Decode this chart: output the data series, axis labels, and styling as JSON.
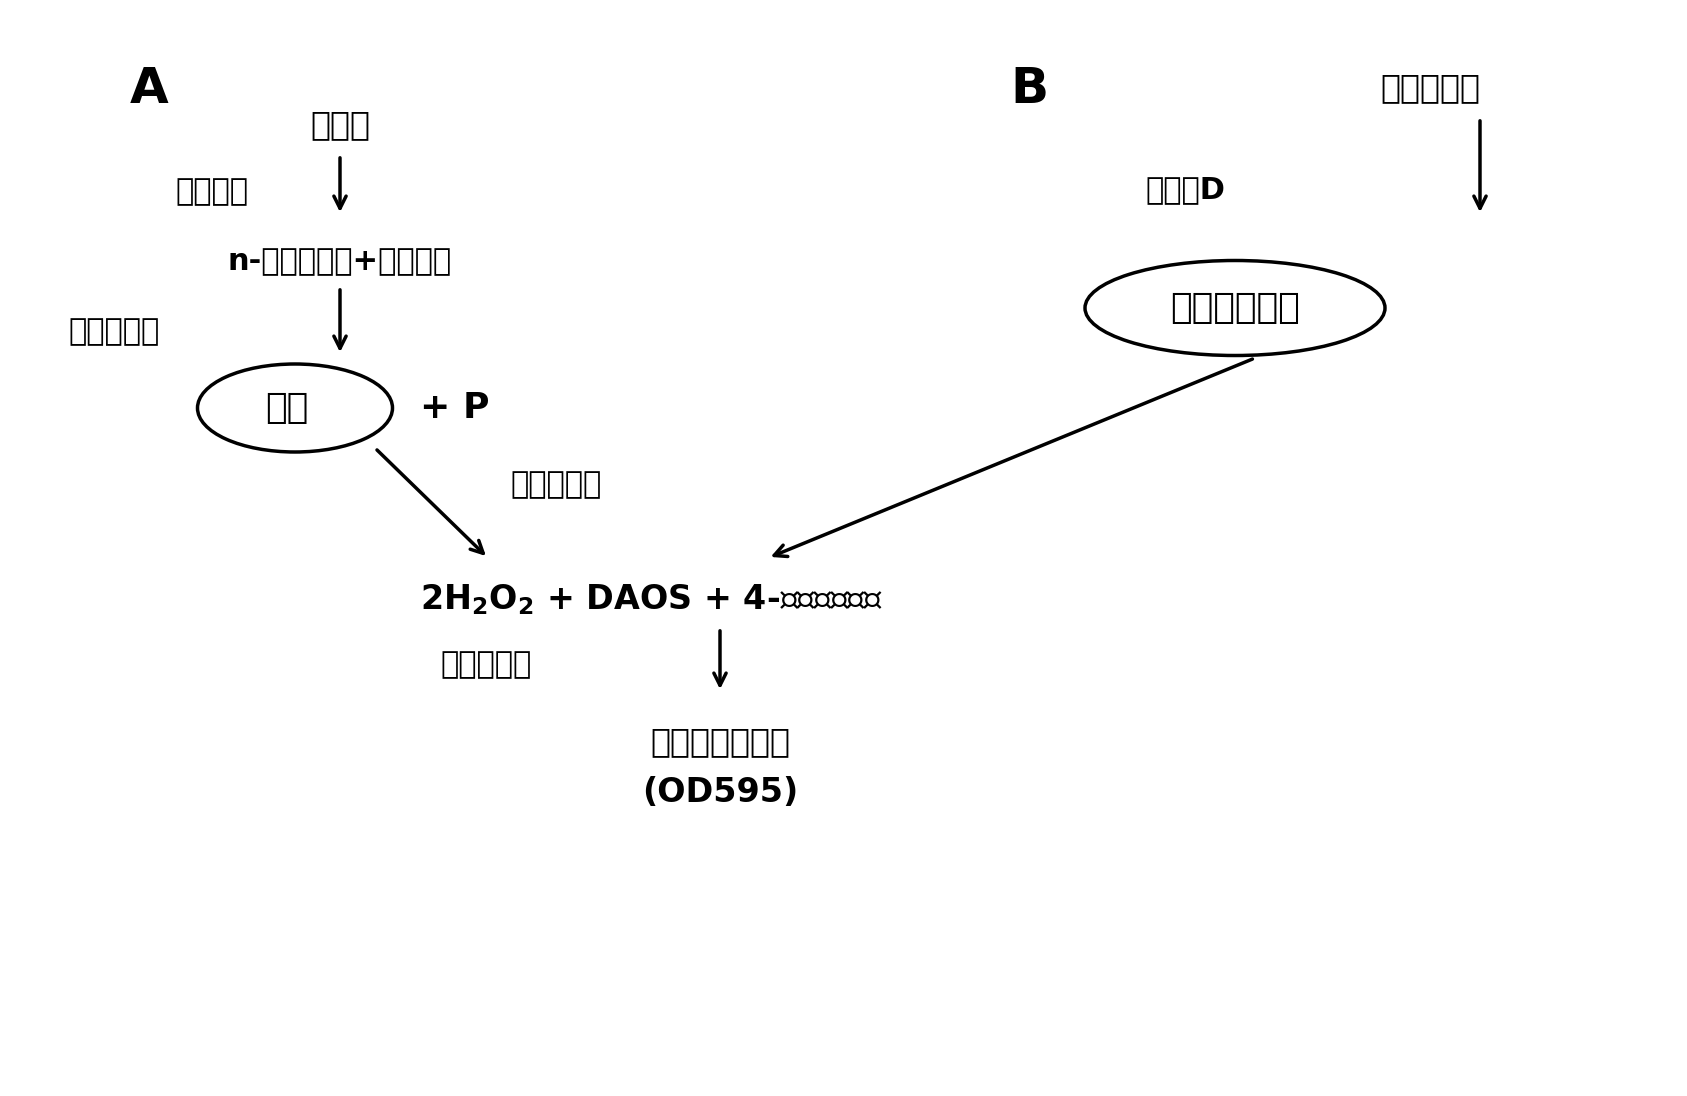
{
  "panel_A_label": "A",
  "panel_B_label": "B",
  "A_text1": "鞘磷脂",
  "A_enzyme1": "鞘磷脂酶",
  "A_text2": "n-酰基鞘氨醇+磷酸胆碱",
  "A_enzyme2": "碱性磷酸酶",
  "A_oval_text": "胆碱",
  "A_plus_P": "+ P",
  "A_enzyme3": "胆碱氧化酶",
  "A_h2o2_line1": "2H",
  "A_h2o2_sub": "2",
  "A_h2o2_line2": "O",
  "A_h2o2_sub2": "2",
  "A_h2o2_rest": " + DAOS + 4-氨基安替比林",
  "A_enzyme4": "过氧化物酶",
  "A_final_text": "紫色或蓝色染色",
  "A_od_text": "(OD595)",
  "B_text1": "磷脂酰胆碱",
  "B_enzyme1": "磷脂酶D",
  "B_oval_text": "胆碱和磷脂酸",
  "background": "#ffffff",
  "text_color": "#000000",
  "arrow_color": "#000000",
  "font_size_label": 36,
  "font_size_main": 22,
  "font_size_h2o2": 24
}
